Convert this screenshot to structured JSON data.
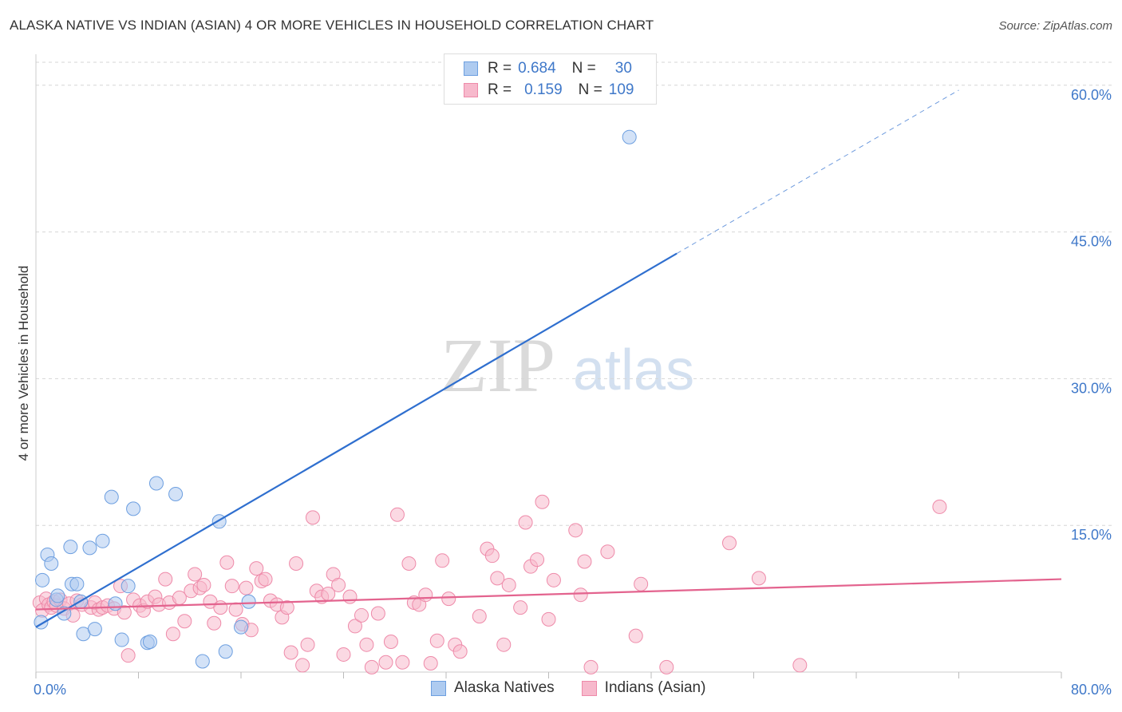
{
  "title": "ALASKA NATIVE VS INDIAN (ASIAN) 4 OR MORE VEHICLES IN HOUSEHOLD CORRELATION CHART",
  "source": "Source: ZipAtlas.com",
  "watermark": {
    "zip": "ZIP",
    "atlas": "atlas"
  },
  "legend": {
    "series1": {
      "r_label": "R =",
      "r_value": "0.684",
      "n_label": "N =",
      "n_value": "30"
    },
    "series2": {
      "r_label": "R =",
      "r_value": "0.159",
      "n_label": "N =",
      "n_value": "109"
    }
  },
  "colors": {
    "blue_fill": "#aecbf0",
    "blue_stroke": "#6d9fe0",
    "blue_line": "#2f6fcf",
    "pink_fill": "#f7b9cc",
    "pink_stroke": "#ee8aa9",
    "pink_line": "#e3638e",
    "grid": "#d6d6d6",
    "axis_text": "#3f78c9"
  },
  "chart_data": {
    "type": "scatter",
    "title": "ALASKA NATIVE VS INDIAN (ASIAN) 4 OR MORE VEHICLES IN HOUSEHOLD CORRELATION CHART",
    "xlabel": "",
    "ylabel": "4 or more Vehicles in Household",
    "xlim": [
      0,
      80
    ],
    "ylim": [
      0,
      63
    ],
    "x_tick_labels": [
      "0.0%",
      "80.0%"
    ],
    "y_ticks": [
      15,
      30,
      45,
      60
    ],
    "y_tick_labels": [
      "15.0%",
      "30.0%",
      "45.0%",
      "60.0%"
    ],
    "grid": true,
    "series": [
      {
        "name": "Alaska Natives",
        "R": 0.684,
        "N": 30,
        "trend": {
          "x0": 0,
          "y0": 4.6,
          "x1": 50,
          "y1": 42.8,
          "dashed_to_x": 72,
          "dashed_to_y": 59.5
        },
        "points": [
          [
            0.4,
            5.1
          ],
          [
            0.5,
            9.4
          ],
          [
            0.9,
            12.0
          ],
          [
            1.2,
            11.1
          ],
          [
            1.6,
            7.4
          ],
          [
            1.7,
            7.8
          ],
          [
            2.2,
            6.0
          ],
          [
            2.7,
            12.8
          ],
          [
            2.8,
            9.0
          ],
          [
            3.2,
            9.0
          ],
          [
            3.5,
            7.2
          ],
          [
            3.7,
            3.9
          ],
          [
            4.2,
            12.7
          ],
          [
            4.6,
            4.4
          ],
          [
            5.2,
            13.4
          ],
          [
            5.9,
            17.9
          ],
          [
            6.2,
            7.0
          ],
          [
            6.7,
            3.3
          ],
          [
            7.2,
            8.8
          ],
          [
            7.6,
            16.7
          ],
          [
            8.7,
            3.0
          ],
          [
            8.9,
            3.1
          ],
          [
            9.4,
            19.3
          ],
          [
            10.9,
            18.2
          ],
          [
            13.0,
            1.1
          ],
          [
            14.3,
            15.4
          ],
          [
            14.8,
            2.1
          ],
          [
            16.0,
            4.6
          ],
          [
            16.6,
            7.2
          ],
          [
            46.3,
            54.7
          ]
        ]
      },
      {
        "name": "Indians (Asian)",
        "R": 0.159,
        "N": 109,
        "trend": {
          "x0": 0,
          "y0": 6.4,
          "x1": 80,
          "y1": 9.5
        },
        "points": [
          [
            0.3,
            7.1
          ],
          [
            0.5,
            6.3
          ],
          [
            0.8,
            7.5
          ],
          [
            1.0,
            6.9
          ],
          [
            1.2,
            6.6
          ],
          [
            1.4,
            7.2
          ],
          [
            1.6,
            6.8
          ],
          [
            1.9,
            7.4
          ],
          [
            2.2,
            6.5
          ],
          [
            2.6,
            7.0
          ],
          [
            2.9,
            5.8
          ],
          [
            3.2,
            7.3
          ],
          [
            3.6,
            6.9
          ],
          [
            4.3,
            6.6
          ],
          [
            4.6,
            7.1
          ],
          [
            4.9,
            6.4
          ],
          [
            5.2,
            6.6
          ],
          [
            5.6,
            6.8
          ],
          [
            6.1,
            6.5
          ],
          [
            6.6,
            8.8
          ],
          [
            6.9,
            6.1
          ],
          [
            7.2,
            1.7
          ],
          [
            7.6,
            7.4
          ],
          [
            8.1,
            6.8
          ],
          [
            8.4,
            6.3
          ],
          [
            8.7,
            7.2
          ],
          [
            9.3,
            7.7
          ],
          [
            9.6,
            6.9
          ],
          [
            10.1,
            9.5
          ],
          [
            10.4,
            7.1
          ],
          [
            10.7,
            3.9
          ],
          [
            11.2,
            7.6
          ],
          [
            11.6,
            5.2
          ],
          [
            12.1,
            8.3
          ],
          [
            12.4,
            10.0
          ],
          [
            12.8,
            8.6
          ],
          [
            13.1,
            8.9
          ],
          [
            13.6,
            7.2
          ],
          [
            13.9,
            5.0
          ],
          [
            14.4,
            6.6
          ],
          [
            14.9,
            11.2
          ],
          [
            15.3,
            8.8
          ],
          [
            15.6,
            6.4
          ],
          [
            16.1,
            4.9
          ],
          [
            16.4,
            8.6
          ],
          [
            16.8,
            4.3
          ],
          [
            17.2,
            10.6
          ],
          [
            17.6,
            9.3
          ],
          [
            17.9,
            9.5
          ],
          [
            18.3,
            7.3
          ],
          [
            18.8,
            6.9
          ],
          [
            19.2,
            5.6
          ],
          [
            19.6,
            6.6
          ],
          [
            19.9,
            2.0
          ],
          [
            20.3,
            11.1
          ],
          [
            20.8,
            0.7
          ],
          [
            21.2,
            2.8
          ],
          [
            21.6,
            15.8
          ],
          [
            21.9,
            8.3
          ],
          [
            22.3,
            7.7
          ],
          [
            22.8,
            8.0
          ],
          [
            23.2,
            10.0
          ],
          [
            23.6,
            8.9
          ],
          [
            24.0,
            1.8
          ],
          [
            24.5,
            7.7
          ],
          [
            24.9,
            4.7
          ],
          [
            25.4,
            5.8
          ],
          [
            25.8,
            2.8
          ],
          [
            26.2,
            0.5
          ],
          [
            26.7,
            6.0
          ],
          [
            27.3,
            1.0
          ],
          [
            27.7,
            3.1
          ],
          [
            28.2,
            16.1
          ],
          [
            28.6,
            1.0
          ],
          [
            29.1,
            11.1
          ],
          [
            29.5,
            7.1
          ],
          [
            29.9,
            6.9
          ],
          [
            30.4,
            7.9
          ],
          [
            30.8,
            0.9
          ],
          [
            31.3,
            3.2
          ],
          [
            31.7,
            11.4
          ],
          [
            32.2,
            7.5
          ],
          [
            32.7,
            2.8
          ],
          [
            33.1,
            2.1
          ],
          [
            34.6,
            5.7
          ],
          [
            35.2,
            12.6
          ],
          [
            35.6,
            11.9
          ],
          [
            36.0,
            9.6
          ],
          [
            36.5,
            2.8
          ],
          [
            36.9,
            8.9
          ],
          [
            37.8,
            6.6
          ],
          [
            38.2,
            15.3
          ],
          [
            38.6,
            10.8
          ],
          [
            39.1,
            11.5
          ],
          [
            39.5,
            17.4
          ],
          [
            40.0,
            5.4
          ],
          [
            40.4,
            9.4
          ],
          [
            42.1,
            14.5
          ],
          [
            42.5,
            7.9
          ],
          [
            42.8,
            11.3
          ],
          [
            43.3,
            0.5
          ],
          [
            44.6,
            12.3
          ],
          [
            46.8,
            3.7
          ],
          [
            47.2,
            9.0
          ],
          [
            49.2,
            0.5
          ],
          [
            54.1,
            13.2
          ],
          [
            56.4,
            9.6
          ],
          [
            59.6,
            0.7
          ],
          [
            70.5,
            16.9
          ]
        ]
      }
    ]
  },
  "bottom_legend": {
    "series1": "Alaska Natives",
    "series2": "Indians (Asian)"
  }
}
